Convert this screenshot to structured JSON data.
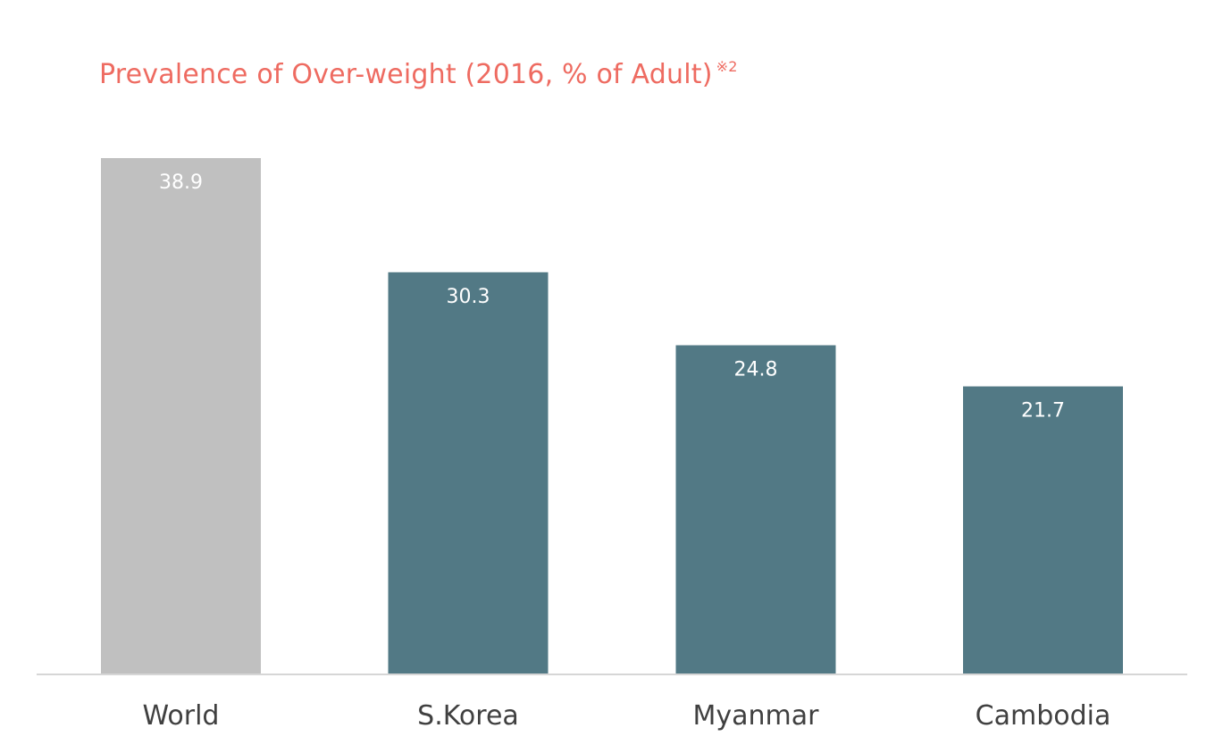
{
  "chart_data": {
    "type": "bar",
    "title": "Prevalence of Over-weight (2016, % of Adult)",
    "title_note": "※2",
    "xlabel": "",
    "ylabel": "",
    "categories": [
      "World",
      "S.Korea",
      "Myanmar",
      "Cambodia"
    ],
    "values": [
      38.9,
      30.3,
      24.8,
      21.7
    ],
    "data_labels": [
      "38.9",
      "30.3",
      "24.8",
      "21.7"
    ],
    "bar_colors": [
      "#c0c0c0",
      "#527985",
      "#527985",
      "#527985"
    ],
    "title_color": "#ee6b61",
    "ylim": [
      0,
      38.9
    ],
    "grid": false,
    "legend": "none"
  }
}
